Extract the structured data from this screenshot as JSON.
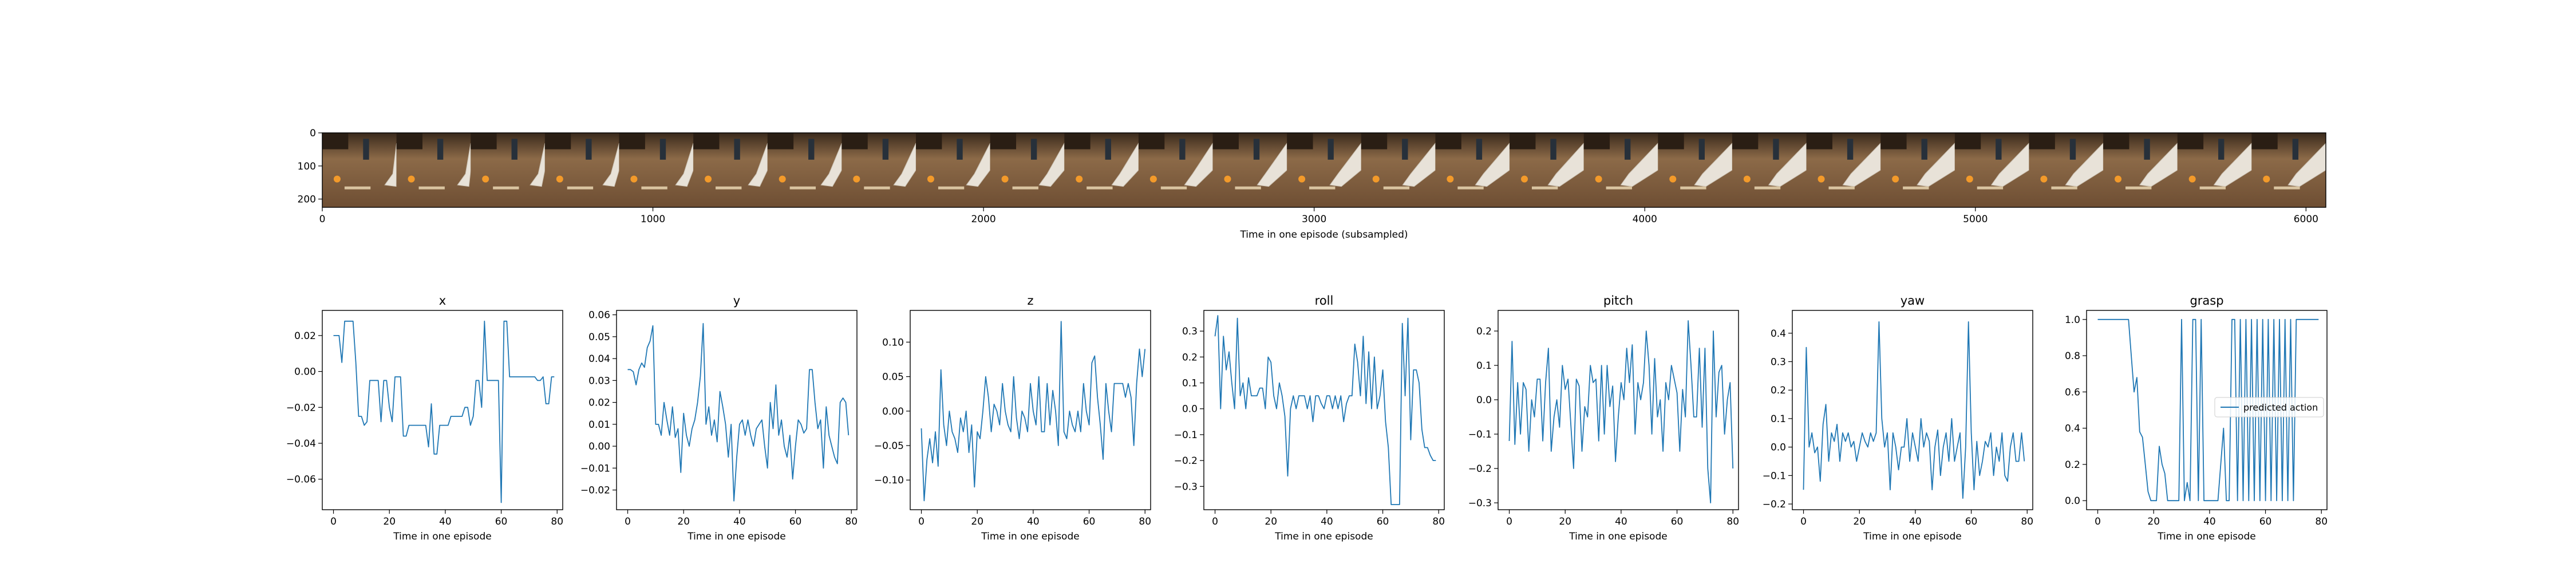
{
  "colors": {
    "series": "#1f77b4",
    "axis": "#000000"
  },
  "chart_data": [
    {
      "type": "image",
      "xlabel": "Time in one episode (subsampled)",
      "ylabel": "",
      "xlim": [
        0,
        6060
      ],
      "ylim": [
        225,
        0
      ],
      "x_ticks": [
        0,
        1000,
        2000,
        3000,
        4000,
        5000,
        6000
      ],
      "y_ticks": [
        0,
        100,
        200
      ],
      "frame_count": 27
    },
    {
      "type": "line",
      "title": "x",
      "xlabel": "Time in one episode",
      "xlim": [
        -4,
        82
      ],
      "ylim": [
        -0.077,
        0.034
      ],
      "x_ticks": [
        0,
        20,
        40,
        60,
        80
      ],
      "y_ticks": [
        -0.06,
        -0.04,
        -0.02,
        0.0,
        0.02
      ],
      "y_tick_labels": [
        "−0.06",
        "−0.04",
        "−0.02",
        "0.00",
        "0.02"
      ],
      "series": [
        {
          "values": [
            0.02,
            0.02,
            0.02,
            0.005,
            0.028,
            0.028,
            0.028,
            0.028,
            0.005,
            -0.025,
            -0.025,
            -0.03,
            -0.028,
            -0.005,
            -0.005,
            -0.005,
            -0.005,
            -0.028,
            -0.005,
            -0.005,
            -0.02,
            -0.028,
            -0.003,
            -0.003,
            -0.003,
            -0.036,
            -0.036,
            -0.03,
            -0.03,
            -0.03,
            -0.03,
            -0.03,
            -0.03,
            -0.03,
            -0.042,
            -0.018,
            -0.046,
            -0.046,
            -0.03,
            -0.03,
            -0.03,
            -0.03,
            -0.025,
            -0.025,
            -0.025,
            -0.025,
            -0.025,
            -0.02,
            -0.02,
            -0.03,
            -0.025,
            -0.005,
            -0.005,
            -0.02,
            0.028,
            -0.005,
            -0.005,
            -0.005,
            -0.005,
            -0.005,
            -0.073,
            0.028,
            0.028,
            -0.003,
            -0.003,
            -0.003,
            -0.003,
            -0.003,
            -0.003,
            -0.003,
            -0.003,
            -0.003,
            -0.003,
            -0.005,
            -0.005,
            -0.003,
            -0.018,
            -0.018,
            -0.003,
            -0.003
          ]
        }
      ]
    },
    {
      "type": "line",
      "title": "y",
      "xlabel": "Time in one episode",
      "xlim": [
        -4,
        82
      ],
      "ylim": [
        -0.029,
        0.062
      ],
      "x_ticks": [
        0,
        20,
        40,
        60,
        80
      ],
      "y_ticks": [
        -0.02,
        -0.01,
        0.0,
        0.01,
        0.02,
        0.03,
        0.04,
        0.05,
        0.06
      ],
      "y_tick_labels": [
        "−0.02",
        "−0.01",
        "0.00",
        "0.01",
        "0.02",
        "0.03",
        "0.04",
        "0.05",
        "0.06"
      ],
      "series": [
        {
          "values": [
            0.035,
            0.035,
            0.034,
            0.028,
            0.035,
            0.038,
            0.036,
            0.045,
            0.048,
            0.055,
            0.01,
            0.01,
            0.005,
            0.02,
            0.012,
            0.005,
            0.018,
            0.004,
            0.008,
            -0.012,
            0.015,
            0.005,
            0.0,
            0.008,
            0.012,
            0.02,
            0.032,
            0.056,
            0.01,
            0.018,
            0.005,
            0.012,
            0.002,
            0.025,
            0.018,
            0.01,
            -0.005,
            0.01,
            -0.025,
            -0.005,
            0.01,
            0.012,
            0.005,
            0.012,
            0.005,
            0.0,
            0.008,
            0.01,
            0.012,
            0.0,
            -0.01,
            0.02,
            0.008,
            0.028,
            0.005,
            0.012,
            0.0,
            -0.005,
            0.005,
            -0.015,
            0.0,
            0.012,
            0.01,
            0.006,
            0.008,
            0.035,
            0.035,
            0.02,
            0.008,
            0.012,
            -0.01,
            0.018,
            0.005,
            0.0,
            -0.005,
            -0.008,
            0.02,
            0.022,
            0.02,
            0.005
          ]
        }
      ]
    },
    {
      "type": "line",
      "title": "z",
      "xlabel": "Time in one episode",
      "xlim": [
        -4,
        82
      ],
      "ylim": [
        -0.143,
        0.146
      ],
      "x_ticks": [
        0,
        20,
        40,
        60,
        80
      ],
      "y_ticks": [
        -0.1,
        -0.05,
        0.0,
        0.05,
        0.1
      ],
      "y_tick_labels": [
        "−0.10",
        "−0.05",
        "0.00",
        "0.05",
        "0.10"
      ],
      "series": [
        {
          "values": [
            -0.025,
            -0.13,
            -0.07,
            -0.04,
            -0.075,
            -0.03,
            -0.08,
            0.06,
            -0.02,
            -0.05,
            0.0,
            -0.03,
            -0.04,
            -0.06,
            -0.01,
            -0.03,
            0.0,
            -0.06,
            -0.02,
            -0.11,
            -0.03,
            -0.04,
            0.0,
            0.05,
            0.02,
            -0.03,
            0.01,
            0.0,
            -0.02,
            0.04,
            0.0,
            -0.02,
            -0.03,
            0.05,
            -0.01,
            -0.04,
            0.0,
            -0.01,
            -0.03,
            0.04,
            0.0,
            -0.02,
            0.05,
            -0.03,
            -0.03,
            0.04,
            -0.02,
            0.03,
            0.0,
            -0.05,
            0.13,
            -0.03,
            -0.04,
            0.0,
            -0.02,
            -0.03,
            0.0,
            -0.03,
            0.04,
            0.0,
            -0.02,
            0.07,
            0.08,
            0.02,
            -0.02,
            -0.07,
            0.04,
            0.0,
            -0.03,
            0.04,
            0.04,
            0.04,
            0.04,
            0.02,
            0.04,
            0.02,
            -0.05,
            0.04,
            0.09,
            0.05,
            0.09
          ]
        }
      ]
    },
    {
      "type": "line",
      "title": "roll",
      "xlabel": "Time in one episode",
      "xlim": [
        -4,
        82
      ],
      "ylim": [
        -0.39,
        0.38
      ],
      "x_ticks": [
        0,
        20,
        40,
        60,
        80
      ],
      "y_ticks": [
        -0.3,
        -0.2,
        -0.1,
        0.0,
        0.1,
        0.2,
        0.3
      ],
      "y_tick_labels": [
        "−0.3",
        "−0.2",
        "−0.1",
        "0.0",
        "0.1",
        "0.2",
        "0.3"
      ],
      "series": [
        {
          "values": [
            0.28,
            0.36,
            0.0,
            0.28,
            0.15,
            0.22,
            0.1,
            0.0,
            0.35,
            0.05,
            0.1,
            0.0,
            0.12,
            0.05,
            0.05,
            0.05,
            0.08,
            0.08,
            0.0,
            0.2,
            0.18,
            0.05,
            0.0,
            0.1,
            0.05,
            -0.03,
            -0.26,
            0.0,
            0.05,
            0.0,
            0.05,
            0.05,
            0.05,
            0.0,
            0.05,
            -0.05,
            0.05,
            0.05,
            0.02,
            0.0,
            0.05,
            0.05,
            0.0,
            0.05,
            0.0,
            0.05,
            -0.05,
            0.02,
            0.05,
            0.05,
            0.25,
            0.18,
            0.05,
            0.28,
            0.02,
            0.22,
            0.0,
            0.2,
            0.0,
            0.05,
            0.15,
            -0.05,
            -0.15,
            -0.37,
            -0.37,
            -0.37,
            -0.37,
            0.33,
            0.05,
            0.35,
            -0.12,
            0.15,
            0.15,
            0.1,
            -0.08,
            -0.15,
            -0.15,
            -0.18,
            -0.2,
            -0.2
          ]
        }
      ]
    },
    {
      "type": "line",
      "title": "pitch",
      "xlabel": "Time in one episode",
      "xlim": [
        -4,
        82
      ],
      "ylim": [
        -0.32,
        0.26
      ],
      "x_ticks": [
        0,
        20,
        40,
        60,
        80
      ],
      "y_ticks": [
        -0.3,
        -0.2,
        -0.1,
        0.0,
        0.1,
        0.2
      ],
      "y_tick_labels": [
        "−0.3",
        "−0.2",
        "−0.1",
        "0.0",
        "0.1",
        "0.2"
      ],
      "series": [
        {
          "values": [
            -0.12,
            0.17,
            -0.13,
            0.05,
            -0.1,
            0.05,
            0.03,
            -0.15,
            0.0,
            -0.05,
            0.06,
            0.06,
            -0.12,
            0.05,
            0.15,
            -0.15,
            -0.05,
            0.0,
            -0.08,
            0.1,
            0.03,
            0.06,
            -0.07,
            -0.2,
            0.06,
            0.04,
            -0.15,
            -0.02,
            -0.05,
            0.1,
            0.05,
            0.06,
            -0.12,
            0.1,
            -0.1,
            0.1,
            -0.02,
            0.04,
            -0.18,
            -0.05,
            0.05,
            0.0,
            0.15,
            0.05,
            0.16,
            -0.1,
            0.05,
            0.0,
            0.05,
            0.2,
            0.1,
            -0.1,
            0.12,
            -0.05,
            0.0,
            -0.15,
            0.05,
            0.0,
            0.1,
            0.06,
            0.02,
            -0.15,
            0.03,
            -0.05,
            0.23,
            0.1,
            -0.05,
            -0.05,
            0.15,
            -0.08,
            0.15,
            -0.2,
            -0.3,
            0.2,
            -0.05,
            0.08,
            0.1,
            -0.1,
            0.0,
            0.05,
            -0.2
          ]
        }
      ]
    },
    {
      "type": "line",
      "title": "yaw",
      "xlabel": "Time in one episode",
      "xlim": [
        -4,
        82
      ],
      "ylim": [
        -0.22,
        0.48
      ],
      "x_ticks": [
        0,
        20,
        40,
        60,
        80
      ],
      "y_ticks": [
        -0.2,
        -0.1,
        0.0,
        0.1,
        0.2,
        0.3,
        0.4
      ],
      "y_tick_labels": [
        "−0.2",
        "−0.1",
        "0.0",
        "0.1",
        "0.2",
        "0.3",
        "0.4"
      ],
      "series": [
        {
          "values": [
            -0.15,
            0.35,
            0.0,
            0.05,
            -0.02,
            0.0,
            -0.12,
            0.08,
            0.15,
            -0.05,
            0.05,
            0.02,
            0.08,
            -0.05,
            0.05,
            0.02,
            0.05,
            0.0,
            0.02,
            -0.05,
            0.0,
            0.05,
            0.02,
            0.0,
            0.05,
            0.02,
            0.05,
            0.44,
            0.1,
            0.0,
            0.05,
            -0.15,
            0.05,
            0.0,
            -0.08,
            0.0,
            0.0,
            0.1,
            -0.05,
            0.05,
            0.0,
            -0.05,
            0.1,
            0.0,
            0.05,
            0.02,
            -0.15,
            0.0,
            0.06,
            -0.1,
            0.0,
            0.05,
            -0.05,
            0.1,
            -0.05,
            0.0,
            0.05,
            -0.18,
            0.0,
            0.44,
            0.05,
            -0.15,
            0.02,
            -0.1,
            -0.05,
            0.02,
            0.0,
            0.05,
            -0.1,
            0.0,
            -0.05,
            0.05,
            -0.1,
            -0.12,
            0.0,
            0.05,
            -0.05,
            -0.05,
            0.05,
            -0.05
          ]
        }
      ]
    },
    {
      "type": "line",
      "title": "grasp",
      "xlabel": "Time in one episode",
      "xlim": [
        -4,
        82
      ],
      "ylim": [
        -0.05,
        1.05
      ],
      "x_ticks": [
        0,
        20,
        40,
        60,
        80
      ],
      "y_ticks": [
        0.0,
        0.2,
        0.4,
        0.6,
        0.8,
        1.0
      ],
      "y_tick_labels": [
        "0.0",
        "0.2",
        "0.4",
        "0.6",
        "0.8",
        "1.0"
      ],
      "legend": {
        "label": "predicted action",
        "loc": "right"
      },
      "series": [
        {
          "name": "predicted action",
          "values": [
            1,
            1,
            1,
            1,
            1,
            1,
            1,
            1,
            1,
            1,
            1,
            1,
            0.8,
            0.6,
            0.68,
            0.38,
            0.35,
            0.2,
            0.05,
            0,
            0,
            0,
            0.3,
            0.2,
            0.15,
            0,
            0,
            0,
            0,
            0,
            1,
            0,
            0.1,
            0,
            1,
            1,
            0,
            1,
            0,
            0,
            0,
            0,
            0,
            0,
            0.2,
            0.4,
            0,
            0,
            1,
            1,
            0,
            1,
            0,
            1,
            0,
            1,
            0,
            1,
            0,
            1,
            0,
            1,
            0,
            1,
            0,
            1,
            0,
            1,
            0,
            1,
            0,
            1,
            1,
            1,
            1,
            1,
            1,
            1,
            1,
            1
          ]
        }
      ]
    }
  ]
}
